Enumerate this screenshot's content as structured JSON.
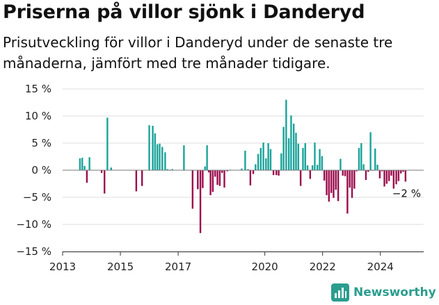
{
  "title": "Priserna på villor sjönk i Danderyd",
  "subtitle": "Prisutveckling för villor i Danderyd under de senaste tre månaderna, jämfört med tre månader tidigare.",
  "branding": {
    "logo_text": "Newsworthy",
    "logo_color": "#2a9d8f"
  },
  "colors": {
    "positive": "#1aa39a",
    "negative": "#9b0d4c",
    "grid": "#dddddd",
    "axis": "#333333"
  },
  "chart_data": {
    "type": "bar",
    "title": "Priserna på villor sjönk i Danderyd",
    "xlabel": "",
    "ylabel": "",
    "ylim": [
      -15,
      15
    ],
    "y_ticks": [
      -15,
      -10,
      -5,
      0,
      5,
      10,
      15
    ],
    "y_tick_labels": [
      "−15 %",
      "−10 %",
      "−5 %",
      "0 %",
      "5 %",
      "10 %",
      "15 %"
    ],
    "xlim": [
      2013.0,
      2025.5
    ],
    "x_ticks": [
      2013,
      2015,
      2017,
      2020,
      2022,
      2024
    ],
    "x_tick_labels": [
      "2013",
      "2015",
      "2017",
      "2020",
      "2022",
      "2024"
    ],
    "annotation": {
      "text": "−2 %",
      "x": 2024.75,
      "y": -2
    },
    "x": [
      2013.6,
      2013.68,
      2013.76,
      2013.84,
      2013.93,
      2014.35,
      2014.45,
      2014.55,
      2014.68,
      2015.55,
      2015.75,
      2016.0,
      2016.12,
      2016.2,
      2016.28,
      2016.36,
      2016.45,
      2016.55,
      2016.63,
      2016.72,
      2016.8,
      2017.2,
      2017.5,
      2017.68,
      2017.77,
      2017.85,
      2017.93,
      2018.0,
      2018.06,
      2018.12,
      2018.2,
      2018.28,
      2018.36,
      2018.44,
      2018.52,
      2018.6,
      2018.7,
      2018.8,
      2019.2,
      2019.32,
      2019.42,
      2019.5,
      2019.6,
      2019.68,
      2019.77,
      2019.86,
      2019.95,
      2020.04,
      2020.12,
      2020.2,
      2020.3,
      2020.4,
      2020.48,
      2020.57,
      2020.65,
      2020.74,
      2020.83,
      2020.91,
      2021.0,
      2021.08,
      2021.16,
      2021.24,
      2021.32,
      2021.4,
      2021.48,
      2021.57,
      2021.65,
      2021.73,
      2021.82,
      2021.9,
      2021.98,
      2022.06,
      2022.14,
      2022.22,
      2022.3,
      2022.38,
      2022.46,
      2022.54,
      2022.62,
      2022.7,
      2022.78,
      2022.86,
      2022.94,
      2023.02,
      2023.1,
      2023.18,
      2023.26,
      2023.34,
      2023.42,
      2023.5,
      2023.58,
      2023.66,
      2023.74,
      2023.82,
      2023.9,
      2023.98,
      2024.06,
      2024.14,
      2024.22,
      2024.3,
      2024.38,
      2024.46,
      2024.55,
      2024.63,
      2024.71,
      2024.79,
      2024.87
    ],
    "values": [
      2.2,
      2.3,
      0.8,
      -2.3,
      2.4,
      -0.5,
      -4.3,
      9.7,
      0.5,
      -3.9,
      -2.9,
      8.3,
      8.2,
      6.8,
      4.8,
      4.9,
      4.3,
      3.3,
      0.2,
      0.1,
      0.2,
      4.6,
      -7.1,
      -3.5,
      -11.6,
      -3.3,
      0.7,
      4.6,
      -0.4,
      -4.6,
      -4.0,
      -1.2,
      -2.7,
      -2.9,
      -0.5,
      -3.2,
      -0.2,
      0.1,
      0.3,
      3.6,
      0.2,
      -2.8,
      -0.7,
      1.1,
      3.0,
      4.1,
      5.1,
      2.2,
      5.0,
      3.9,
      -0.9,
      -0.9,
      -1.0,
      3.1,
      8.0,
      13.0,
      5.9,
      10.1,
      8.6,
      6.9,
      4.9,
      -2.9,
      4.1,
      5.0,
      0.9,
      -1.6,
      0.9,
      5.1,
      1.0,
      3.9,
      2.6,
      -1.9,
      -4.6,
      -5.8,
      -4.2,
      -5.1,
      -3.6,
      -5.7,
      2.1,
      -1.0,
      -1.1,
      -8.0,
      -3.2,
      -5.1,
      -3.4,
      -0.2,
      4.1,
      5.0,
      1.1,
      -1.8,
      -0.3,
      7.0,
      -0.1,
      4.0,
      1.0,
      -1.5,
      -0.2,
      -3.0,
      -2.5,
      -2.0,
      -1.0,
      -3.4,
      -2.6,
      -2.0,
      -0.6,
      -0.3,
      -2.1
    ]
  }
}
